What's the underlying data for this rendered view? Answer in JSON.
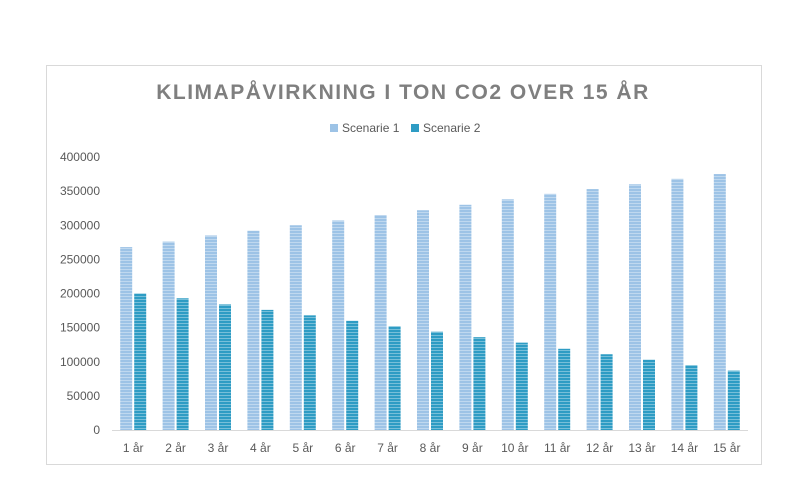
{
  "chart_data": {
    "type": "bar",
    "title": "KLIMAPÅVIRKNING I TON CO2 OVER 15 ÅR",
    "xlabel": "",
    "ylabel": "",
    "categories": [
      "1 år",
      "2 år",
      "3 år",
      "4 år",
      "5 år",
      "6 år",
      "7 år",
      "8 år",
      "9 år",
      "10 år",
      "11 år",
      "12 år",
      "13 år",
      "14 år",
      "15 år"
    ],
    "series": [
      {
        "name": "Scenarie 1",
        "color": "#9dc3e6",
        "values": [
          268000,
          276000,
          285000,
          292000,
          300000,
          307000,
          315000,
          322000,
          330000,
          338000,
          346000,
          353000,
          360000,
          368000,
          375000
        ]
      },
      {
        "name": "Scenarie 2",
        "color": "#2e9cc4",
        "values": [
          200000,
          193000,
          184000,
          176000,
          168000,
          160000,
          152000,
          144000,
          136000,
          128000,
          119000,
          111000,
          103000,
          95000,
          87000
        ]
      }
    ],
    "ylim": [
      0,
      400000
    ],
    "yticks": [
      "0",
      "50000",
      "100000",
      "150000",
      "200000",
      "250000",
      "300000",
      "350000",
      "400000"
    ],
    "grid": false,
    "legend_position": "top"
  }
}
